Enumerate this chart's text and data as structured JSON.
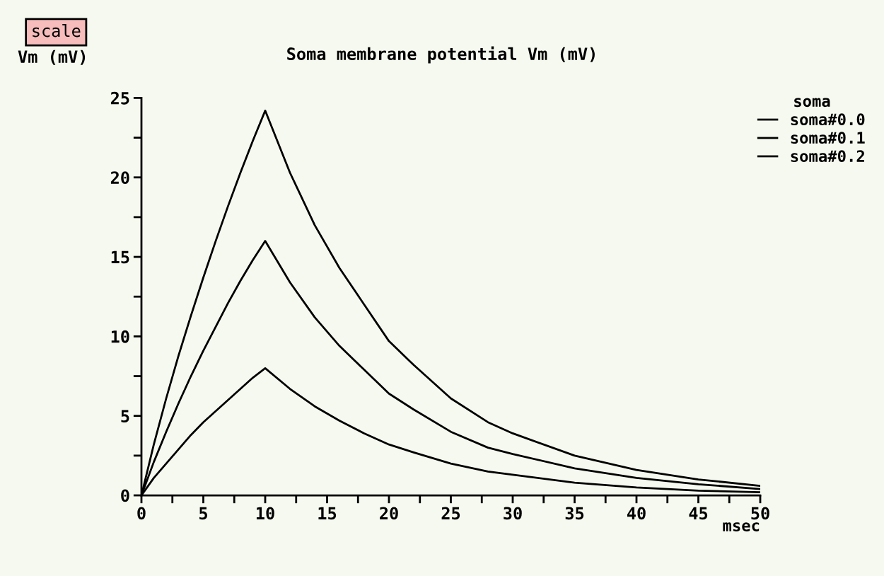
{
  "chart_data": {
    "type": "line",
    "title": "Soma membrane potential Vm (mV)",
    "ylabel": "Vm (mV)",
    "xlabel": "msec",
    "legend_title": "soma",
    "legend": "top right",
    "grid": false,
    "marker": "none",
    "line_style": "solid",
    "annotations": [
      "scale"
    ],
    "x": [
      0,
      1,
      2,
      3,
      4,
      5,
      6,
      7,
      8,
      9,
      10,
      12,
      14,
      16,
      18,
      20,
      22,
      25,
      28,
      30,
      35,
      40,
      45,
      50
    ],
    "series": [
      {
        "name": "soma#0.0",
        "color": "#000000",
        "values": [
          0,
          1.1,
          2.0,
          2.9,
          3.8,
          4.6,
          5.3,
          6.0,
          6.7,
          7.4,
          8.0,
          6.7,
          5.6,
          4.7,
          3.9,
          3.2,
          2.7,
          2.0,
          1.5,
          1.3,
          0.8,
          0.5,
          0.3,
          0.2
        ]
      },
      {
        "name": "soma#0.1",
        "color": "#000000",
        "values": [
          0,
          2.1,
          4.0,
          5.8,
          7.5,
          9.1,
          10.6,
          12.1,
          13.5,
          14.8,
          16.0,
          13.4,
          11.2,
          9.4,
          7.9,
          6.4,
          5.4,
          4.0,
          3.0,
          2.6,
          1.7,
          1.1,
          0.7,
          0.4
        ]
      },
      {
        "name": "soma#0.2",
        "color": "#000000",
        "values": [
          0,
          3.2,
          6.1,
          8.8,
          11.3,
          13.7,
          16.0,
          18.2,
          20.3,
          22.3,
          24.2,
          20.3,
          17.0,
          14.3,
          12.0,
          9.7,
          8.2,
          6.1,
          4.6,
          3.9,
          2.5,
          1.6,
          1.0,
          0.6
        ]
      }
    ],
    "xlim": [
      0,
      50
    ],
    "ylim": [
      0,
      25
    ],
    "xticks": [
      0,
      {
        "value": 2.5,
        "label": null
      },
      5,
      {
        "value": 7.5,
        "label": null
      },
      10,
      {
        "value": 12.5,
        "label": null
      },
      15,
      {
        "value": 17.5,
        "label": null
      },
      20,
      {
        "value": 22.5,
        "label": null
      },
      25,
      {
        "value": 27.5,
        "label": null
      },
      30,
      {
        "value": 32.5,
        "label": null
      },
      35,
      {
        "value": 37.5,
        "label": null
      },
      40,
      {
        "value": 42.5,
        "label": null
      },
      45,
      {
        "value": 47.5,
        "label": null
      },
      50
    ],
    "yticks": [
      0,
      {
        "value": 2.5,
        "label": null
      },
      5,
      {
        "value": 7.5,
        "label": null
      },
      10,
      {
        "value": 12.5,
        "label": null
      },
      15,
      {
        "value": 17.5,
        "label": null
      },
      20,
      {
        "value": 22.5,
        "label": null
      },
      25
    ]
  }
}
